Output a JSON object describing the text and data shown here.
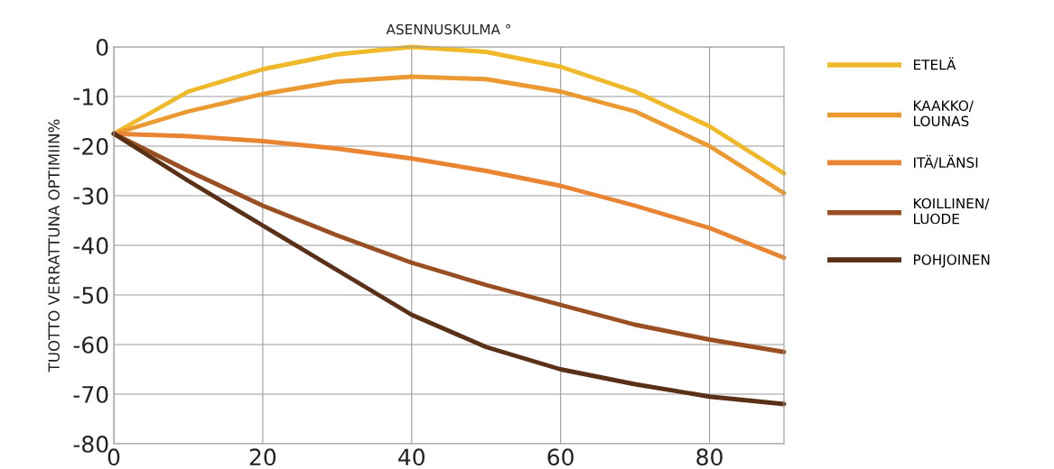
{
  "chart_data": {
    "type": "line",
    "xlabel": "ASENNUSKULMA °",
    "ylabel": "TUOTTO VERRATTUNA OPTIMIIN%",
    "x": [
      0,
      10,
      20,
      30,
      40,
      50,
      60,
      70,
      80,
      90
    ],
    "series": [
      {
        "name": "ETELÄ",
        "color": "#f0b92a",
        "values": [
          -17.5,
          -9,
          -4.5,
          -1.5,
          0,
          -1,
          -4,
          -9,
          -16,
          -25.5
        ]
      },
      {
        "name": "KAAKKO/\nLOUNAS",
        "color": "#eb9a32",
        "values": [
          -17.5,
          -13,
          -9.5,
          -7,
          -6,
          -6.5,
          -9,
          -13,
          -20,
          -29.5
        ]
      },
      {
        "name": "ITÄ/LÄNSI",
        "color": "#e98433",
        "values": [
          -17.5,
          -18,
          -19,
          -20.5,
          -22.5,
          -25,
          -28,
          -32,
          -36.5,
          -42.5
        ]
      },
      {
        "name": "KOILLINEN/\nLUODE",
        "color": "#9a4f22",
        "values": [
          -17.5,
          -25,
          -32,
          -38,
          -43.5,
          -48,
          -52,
          -56,
          -59,
          -61.5
        ]
      },
      {
        "name": "POHJOINEN",
        "color": "#5a3016",
        "values": [
          -17.5,
          -27,
          -36,
          -45,
          -54,
          -60.5,
          -65,
          -68,
          -70.5,
          -72
        ]
      }
    ],
    "xlim": [
      0,
      90
    ],
    "xticks": [
      0,
      20,
      40,
      60,
      80
    ],
    "ylim": [
      -80,
      0
    ],
    "yticks": [
      0,
      -10,
      -20,
      -30,
      -40,
      -50,
      -60,
      -70,
      -80
    ],
    "grid": true,
    "legend": "right",
    "marker": "none",
    "line_style": "solid"
  }
}
